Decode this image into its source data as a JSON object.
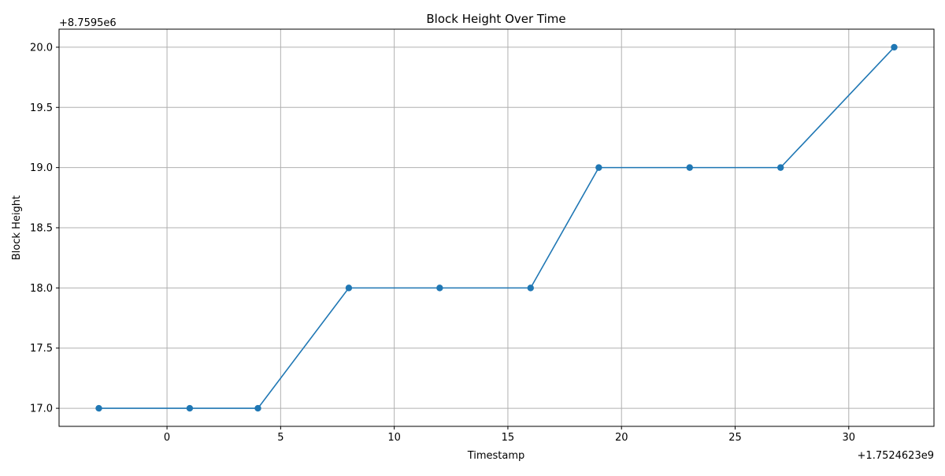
{
  "chart_data": {
    "type": "line",
    "title": "Block Height Over Time",
    "xlabel": "Timestamp",
    "ylabel": "Block Height",
    "x_offset_label": "+1.7524623e9",
    "y_offset_label": "+8.7595e6",
    "xlim": [
      -4.75,
      33.75
    ],
    "ylim": [
      16.85,
      20.15
    ],
    "x_ticks": [
      0,
      5,
      10,
      15,
      20,
      25,
      30
    ],
    "y_ticks": [
      17.0,
      17.5,
      18.0,
      18.5,
      19.0,
      19.5,
      20.0
    ],
    "x_tick_labels": [
      "0",
      "5",
      "10",
      "15",
      "20",
      "25",
      "30"
    ],
    "y_tick_labels": [
      "17.0",
      "17.5",
      "18.0",
      "18.5",
      "19.0",
      "19.5",
      "20.0"
    ],
    "grid": true,
    "series": [
      {
        "x": [
          -3,
          1,
          4,
          8,
          12,
          16,
          19,
          23,
          27,
          32
        ],
        "y": [
          17,
          17,
          17,
          18,
          18,
          18,
          19,
          19,
          19,
          20
        ],
        "color": "#1f77b4",
        "marker": "circle"
      }
    ]
  }
}
